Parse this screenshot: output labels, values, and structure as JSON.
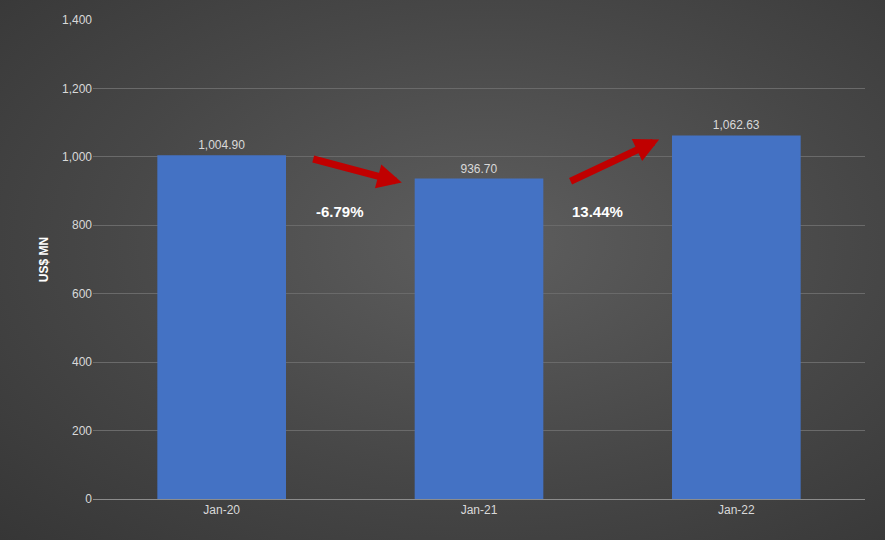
{
  "chart_data": {
    "type": "bar",
    "categories": [
      "Jan-20",
      "Jan-21",
      "Jan-22"
    ],
    "values": [
      1004.9,
      936.7,
      1062.63
    ],
    "value_labels": [
      "1,004.90",
      "936.70",
      "1,062.63"
    ],
    "data_labels": true,
    "color": "#4472c4",
    "y_label": "US$ MN",
    "ylim": [
      0,
      1400
    ],
    "yticks": [
      0,
      200,
      400,
      600,
      800,
      {
        "value": 1000,
        "label": "1,000"
      },
      {
        "value": 1200,
        "label": "1,200"
      },
      {
        "value": 1400,
        "label": "1,400"
      }
    ],
    "grid": true,
    "annotations": [
      "-6.79%",
      "13.44%"
    ]
  }
}
